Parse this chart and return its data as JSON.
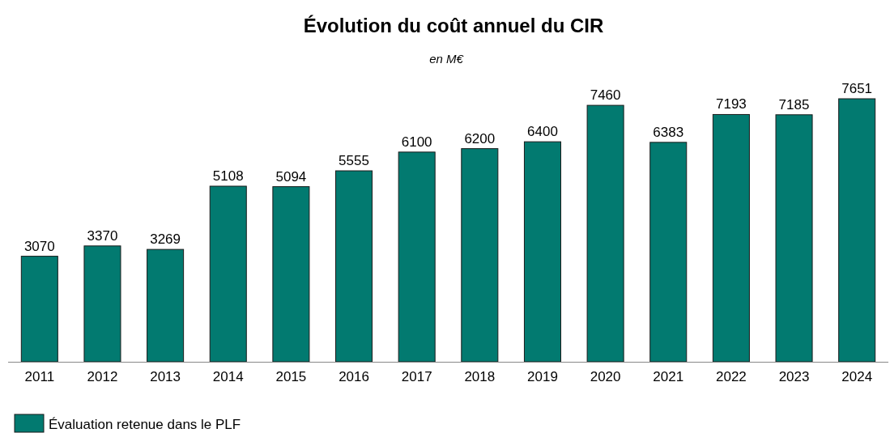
{
  "chart_data": {
    "type": "bar",
    "title": "Évolution du coût annuel du CIR",
    "subtitle": "en M€",
    "categories": [
      "2011",
      "2012",
      "2013",
      "2014",
      "2015",
      "2016",
      "2017",
      "2018",
      "2019",
      "2020",
      "2021",
      "2022",
      "2023",
      "2024"
    ],
    "series": [
      {
        "name": "Évaluation retenue dans le PLF",
        "color": "#027a70",
        "values": [
          3070,
          3370,
          3269,
          5108,
          5094,
          5555,
          6100,
          6200,
          6400,
          7460,
          6383,
          7193,
          7185,
          7651
        ]
      }
    ],
    "data_labels": true,
    "legend": "bottom left",
    "tick_labels": "x"
  }
}
